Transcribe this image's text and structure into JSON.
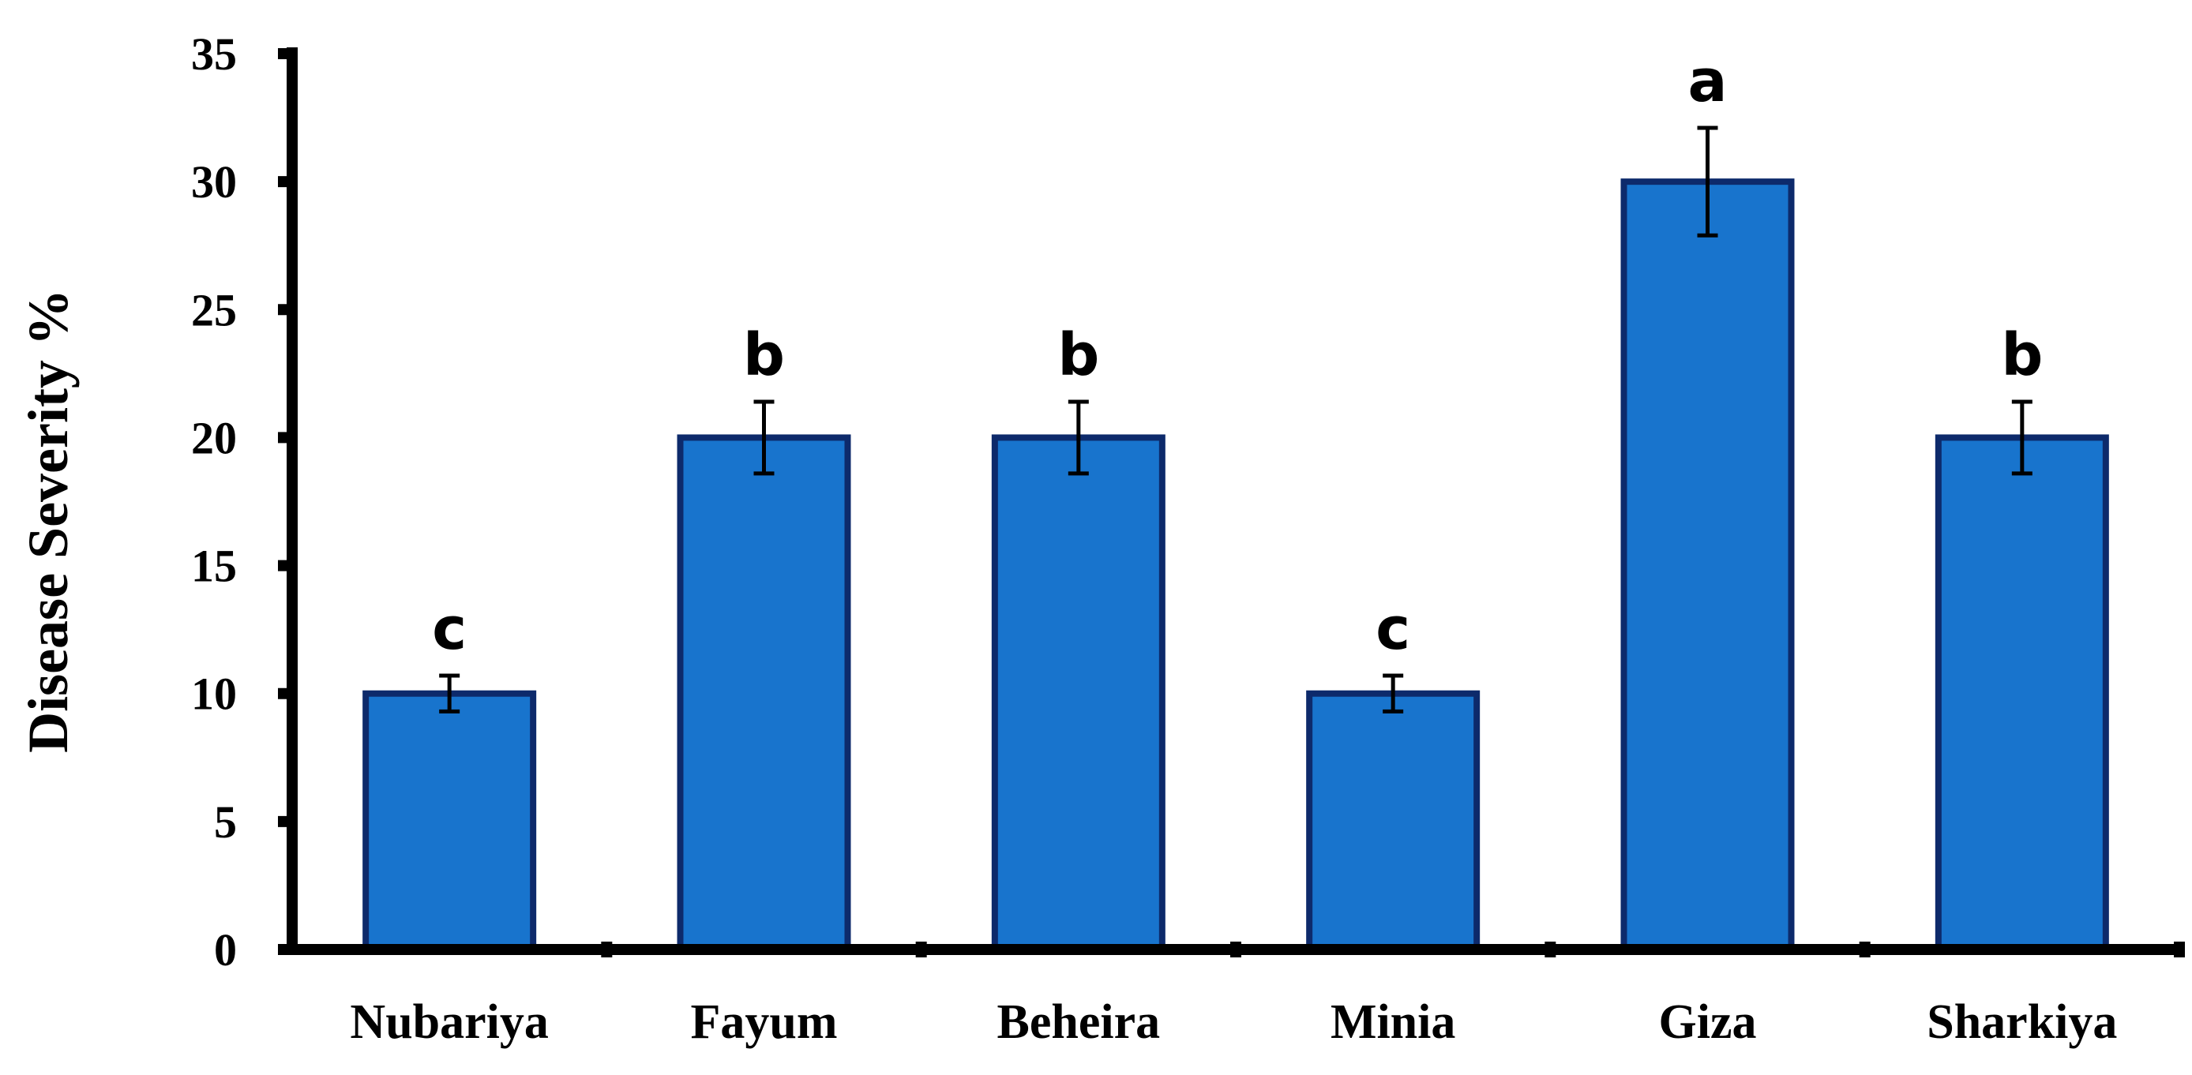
{
  "chart_data": {
    "type": "bar",
    "ylabel": "Disease Severity %",
    "xlabel": "",
    "ylim": [
      0,
      35
    ],
    "yticks": [
      0,
      5,
      10,
      15,
      20,
      25,
      30,
      35
    ],
    "grid": false,
    "legend": "none",
    "categories": [
      "Nubariya",
      "Fayum",
      "Beheira",
      "Minia",
      "Giza",
      "Sharkiya"
    ],
    "values": [
      10,
      20,
      20,
      10,
      30,
      20
    ],
    "errors": [
      0.7,
      1.4,
      1.4,
      0.7,
      2.1,
      1.4
    ],
    "significance_letters": [
      "c",
      "b",
      "b",
      "c",
      "a",
      "b"
    ],
    "colors": {
      "bar_fill": "#1874cd",
      "bar_edge": "#0d2a6b",
      "axis": "#000000"
    }
  }
}
